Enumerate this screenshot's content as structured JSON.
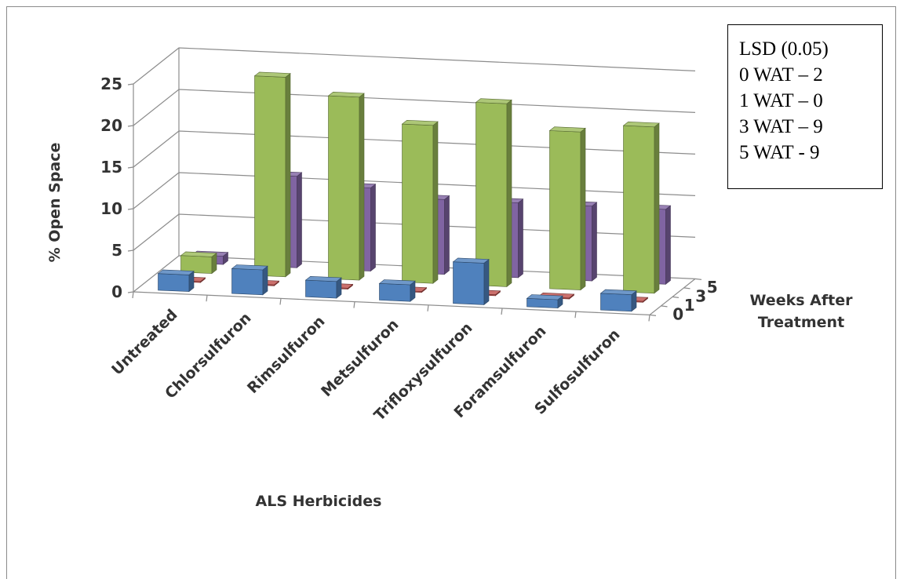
{
  "chart_data": {
    "type": "bar",
    "subtype": "3d-column",
    "title": "",
    "xlabel": "ALS Herbicides",
    "ylabel": "% Open Space",
    "zlabel": "Weeks After Treatment",
    "categories": [
      "Untreated",
      "Chlorsulfuron",
      "Rimsulfuron",
      "Metsulfuron",
      "Trifloxysulfuron",
      "Foramsulfuron",
      "Sulfosulfuron"
    ],
    "depth_categories": [
      "0",
      "1",
      "3",
      "5"
    ],
    "yticks": [
      "0",
      "5",
      "10",
      "15",
      "20",
      "25"
    ],
    "ylim": [
      0,
      25
    ],
    "grid": true,
    "series": [
      {
        "name": "0",
        "color": "#4f81bd",
        "values": [
          2,
          3,
          2,
          2,
          5,
          1,
          2
        ]
      },
      {
        "name": "1",
        "color": "#c0504d",
        "values": [
          0,
          0,
          0,
          0,
          0,
          0,
          0
        ]
      },
      {
        "name": "3",
        "color": "#9bbb59",
        "values": [
          2,
          24,
          22,
          19,
          22,
          19,
          20
        ]
      },
      {
        "name": "5",
        "color": "#8064a2",
        "values": [
          1,
          11,
          10,
          9,
          9,
          9,
          9
        ]
      }
    ],
    "annotation": [
      "LSD (0.05)",
      "0 WAT – 2",
      "1 WAT – 0",
      "3 WAT – 9",
      "5 WAT - 9"
    ]
  }
}
